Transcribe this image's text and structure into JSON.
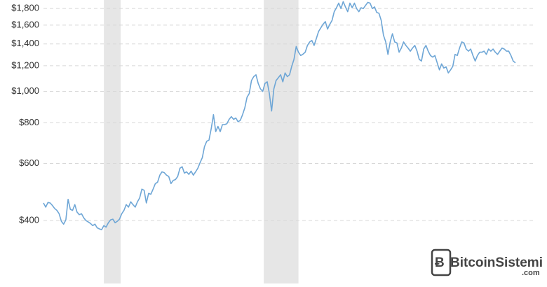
{
  "chart_data": {
    "type": "line",
    "log_scale": true,
    "grid": true,
    "color": "#6ea6d6",
    "shade_color": "#e6e6e6",
    "ylim": [
      256,
      1912
    ],
    "yticks": [
      {
        "value": 400,
        "label": "$400"
      },
      {
        "value": 600,
        "label": "$600"
      },
      {
        "value": 800,
        "label": "$800"
      },
      {
        "value": 1000,
        "label": "$1,000"
      },
      {
        "value": 1200,
        "label": "$1,200"
      },
      {
        "value": 1400,
        "label": "$1,400"
      },
      {
        "value": 1600,
        "label": "$1,600"
      },
      {
        "value": 1800,
        "label": "$1,800"
      }
    ],
    "shaded_ranges": [
      [
        27,
        34.5
      ],
      [
        98.5,
        114
      ]
    ],
    "values": [
      453,
      440,
      455,
      453,
      445,
      436,
      430,
      420,
      398,
      390,
      402,
      465,
      433,
      430,
      448,
      425,
      417,
      420,
      408,
      400,
      396,
      392,
      386,
      390,
      380,
      377,
      375,
      386,
      382,
      394,
      402,
      404,
      394,
      398,
      404,
      420,
      430,
      448,
      440,
      457,
      448,
      440,
      457,
      470,
      500,
      496,
      453,
      485,
      482,
      500,
      520,
      525,
      552,
      565,
      562,
      552,
      547,
      520,
      532,
      535,
      547,
      580,
      586,
      560,
      565,
      555,
      568,
      552,
      565,
      580,
      603,
      625,
      676,
      702,
      708,
      768,
      848,
      752,
      780,
      752,
      790,
      790,
      795,
      820,
      836,
      820,
      828,
      806,
      815,
      848,
      890,
      960,
      985,
      1080,
      1110,
      1125,
      1058,
      1018,
      1000,
      1058,
      1070,
      985,
      870,
      1018,
      1080,
      1102,
      1125,
      1070,
      1140,
      1110,
      1125,
      1195,
      1255,
      1375,
      1320,
      1290,
      1302,
      1320,
      1385,
      1420,
      1435,
      1385,
      1455,
      1530,
      1570,
      1610,
      1640,
      1555,
      1610,
      1655,
      1760,
      1810,
      1870,
      1800,
      1890,
      1820,
      1760,
      1870,
      1810,
      1870,
      1800,
      1760,
      1810,
      1800,
      1840,
      1880,
      1870,
      1800,
      1820,
      1750,
      1740,
      1655,
      1490,
      1420,
      1300,
      1420,
      1505,
      1420,
      1410,
      1320,
      1360,
      1420,
      1385,
      1360,
      1330,
      1360,
      1385,
      1330,
      1255,
      1240,
      1350,
      1385,
      1330,
      1290,
      1275,
      1290,
      1225,
      1165,
      1215,
      1180,
      1190,
      1140,
      1165,
      1195,
      1300,
      1290,
      1360,
      1420,
      1410,
      1350,
      1330,
      1350,
      1290,
      1240,
      1290,
      1320,
      1320,
      1330,
      1300,
      1350,
      1330,
      1350,
      1320,
      1300,
      1330,
      1360,
      1350,
      1330,
      1330,
      1290,
      1240,
      1225
    ]
  },
  "watermark": {
    "name": "BitcoinSistemi",
    "suffix": ".com"
  }
}
